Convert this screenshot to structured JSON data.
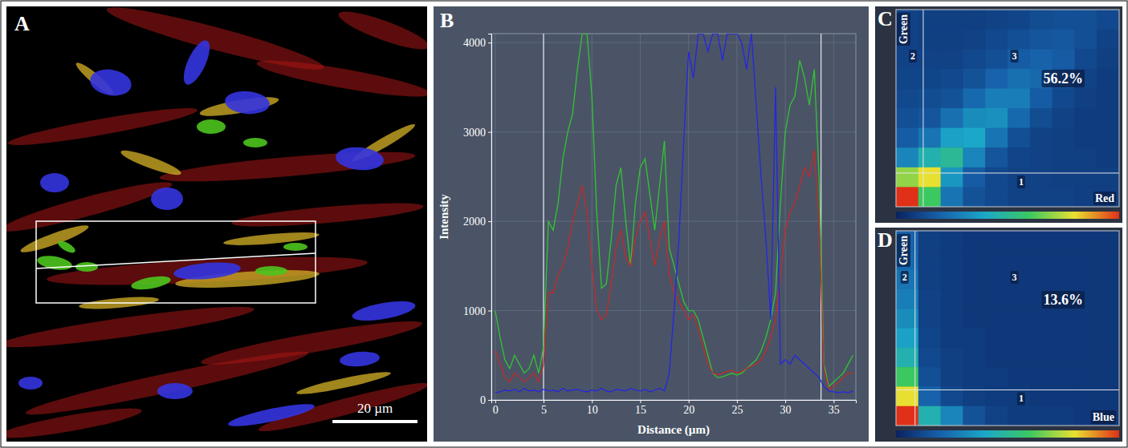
{
  "chart_data": [
    {
      "type": "image",
      "panel": "A",
      "xlim": [
        0,
        99
      ],
      "scale_bar": {
        "value": 20,
        "label": "20 µm"
      }
    },
    {
      "type": "line",
      "panel": "B",
      "x_label": "Distance (µm)",
      "y_label": "Intensity",
      "x": [
        0,
        0.5,
        1,
        1.5,
        2,
        2.5,
        3,
        3.5,
        4,
        4.5,
        5,
        5.5,
        6,
        6.5,
        7,
        7.5,
        8,
        8.5,
        9,
        9.5,
        10,
        10.5,
        11,
        11.5,
        12,
        12.5,
        13,
        13.5,
        14,
        14.5,
        15,
        15.5,
        16,
        16.5,
        17,
        17.5,
        18,
        18.5,
        19,
        19.5,
        20,
        20.5,
        21,
        21.5,
        22,
        22.5,
        23,
        23.5,
        24,
        24.5,
        25,
        25.5,
        26,
        26.5,
        27,
        27.5,
        28,
        28.5,
        29,
        29.5,
        30,
        30.5,
        31,
        31.5,
        32,
        32.5,
        33,
        33.5,
        34,
        34.5,
        35,
        35.5,
        36,
        36.5,
        37
      ],
      "series": [
        {
          "color": "#33c433",
          "values": [
            1000,
            700,
            450,
            350,
            500,
            400,
            300,
            350,
            500,
            300,
            600,
            2000,
            1900,
            2200,
            2700,
            3000,
            3200,
            3700,
            4100,
            4100,
            3400,
            2100,
            1250,
            1300,
            1800,
            2400,
            2600,
            2000,
            1500,
            2200,
            2600,
            2700,
            2300,
            1900,
            2400,
            2900,
            1700,
            1500,
            1300,
            1100,
            1000,
            1000,
            900,
            700,
            500,
            300,
            250,
            260,
            280,
            300,
            280,
            300,
            350,
            400,
            450,
            550,
            700,
            900,
            1200,
            2200,
            3000,
            3300,
            3400,
            3800,
            3600,
            3300,
            3700,
            2500,
            400,
            150,
            200,
            250,
            300,
            400,
            500
          ]
        },
        {
          "color": "#c42a2a",
          "values": [
            550,
            400,
            250,
            200,
            300,
            250,
            200,
            250,
            300,
            200,
            400,
            1200,
            1200,
            1400,
            1500,
            1700,
            2000,
            2200,
            2400,
            2100,
            1500,
            1000,
            900,
            950,
            1300,
            1700,
            1900,
            1600,
            1500,
            1800,
            2000,
            2100,
            1800,
            1500,
            1800,
            2000,
            1400,
            1200,
            1100,
            1000,
            900,
            950,
            800,
            600,
            400,
            300,
            280,
            300,
            320,
            330,
            300,
            320,
            350,
            380,
            400,
            450,
            550,
            700,
            900,
            1400,
            1900,
            2100,
            2200,
            2400,
            2600,
            2500,
            2800,
            2000,
            350,
            120,
            150,
            200,
            250,
            300,
            300
          ]
        },
        {
          "color": "#2626e0",
          "values": [
            80,
            90,
            110,
            100,
            120,
            90,
            130,
            100,
            110,
            90,
            120,
            100,
            110,
            90,
            130,
            100,
            110,
            120,
            100,
            90,
            110,
            100,
            130,
            100,
            90,
            120,
            110,
            100,
            130,
            110,
            100,
            120,
            90,
            110,
            130,
            100,
            300,
            1000,
            1800,
            2900,
            3900,
            3600,
            4100,
            4100,
            3900,
            4100,
            4100,
            3800,
            4100,
            4100,
            4100,
            4000,
            3700,
            4100,
            3300,
            2500,
            1800,
            900,
            3500,
            400,
            450,
            400,
            500,
            450,
            400,
            350,
            300,
            250,
            150,
            100,
            90,
            80,
            90,
            80,
            100
          ]
        }
      ],
      "xlim": [
        -0.4,
        37.3
      ],
      "ylim": [
        0,
        4100
      ],
      "xticks": [
        0,
        5,
        10,
        15,
        20,
        25,
        30,
        35
      ],
      "yticks": [
        0,
        1000,
        2000,
        3000,
        4000
      ],
      "grid": true,
      "cursor_lines": [
        5,
        33.7
      ]
    },
    {
      "type": "heatmap",
      "panel": "C",
      "x_label": "Red",
      "y_label": "Green",
      "xlim": [
        0,
        4095
      ],
      "ylim": [
        0,
        4095
      ],
      "tick_labels": false,
      "thresholds": {
        "x": 500,
        "y": 700
      },
      "quadrant_labels": [
        "1",
        "2",
        "3"
      ],
      "quadrant_percent": {
        "value": 56.2,
        "label": "56.2%"
      },
      "clim": [
        0,
        100
      ],
      "cells": [
        [
          10,
          9,
          9,
          9,
          10,
          11,
          13,
          14,
          14,
          12
        ],
        [
          10,
          9,
          9,
          10,
          12,
          14,
          16,
          17,
          14,
          10
        ],
        [
          10,
          10,
          10,
          12,
          14,
          18,
          20,
          18,
          12,
          9
        ],
        [
          11,
          11,
          12,
          15,
          20,
          24,
          22,
          15,
          10,
          8
        ],
        [
          12,
          13,
          15,
          22,
          28,
          28,
          18,
          12,
          9,
          8
        ],
        [
          14,
          16,
          24,
          32,
          33,
          22,
          13,
          10,
          8,
          8
        ],
        [
          18,
          25,
          38,
          40,
          25,
          14,
          10,
          9,
          8,
          8
        ],
        [
          30,
          45,
          50,
          30,
          16,
          11,
          10,
          9,
          9,
          8
        ],
        [
          70,
          80,
          35,
          18,
          12,
          10,
          10,
          9,
          9,
          9
        ],
        [
          100,
          60,
          25,
          15,
          12,
          10,
          10,
          10,
          9,
          9
        ]
      ]
    },
    {
      "type": "heatmap",
      "panel": "D",
      "x_label": "Blue",
      "y_label": "Green",
      "xlim": [
        0,
        4095
      ],
      "ylim": [
        0,
        4095
      ],
      "tick_labels": false,
      "thresholds": {
        "x": 350,
        "y": 750
      },
      "quadrant_labels": [
        "1",
        "2",
        "3"
      ],
      "quadrant_percent": {
        "value": 13.6,
        "label": "13.6%"
      },
      "clim": [
        0,
        100
      ],
      "cells": [
        [
          20,
          9,
          8,
          7,
          7,
          7,
          7,
          7,
          7,
          7
        ],
        [
          22,
          9,
          8,
          7,
          7,
          7,
          7,
          7,
          7,
          7
        ],
        [
          25,
          9,
          8,
          7,
          7,
          7,
          7,
          7,
          7,
          7
        ],
        [
          28,
          10,
          8,
          7,
          7,
          7,
          7,
          7,
          7,
          7
        ],
        [
          32,
          10,
          8,
          7,
          7,
          7,
          7,
          7,
          7,
          7
        ],
        [
          38,
          11,
          8,
          8,
          7,
          7,
          7,
          7,
          7,
          7
        ],
        [
          45,
          12,
          9,
          8,
          7,
          7,
          7,
          7,
          7,
          7
        ],
        [
          60,
          14,
          9,
          8,
          8,
          7,
          7,
          7,
          7,
          7
        ],
        [
          80,
          20,
          12,
          9,
          8,
          8,
          7,
          7,
          7,
          7
        ],
        [
          100,
          45,
          30,
          15,
          10,
          8,
          8,
          8,
          7,
          7
        ]
      ]
    }
  ]
}
